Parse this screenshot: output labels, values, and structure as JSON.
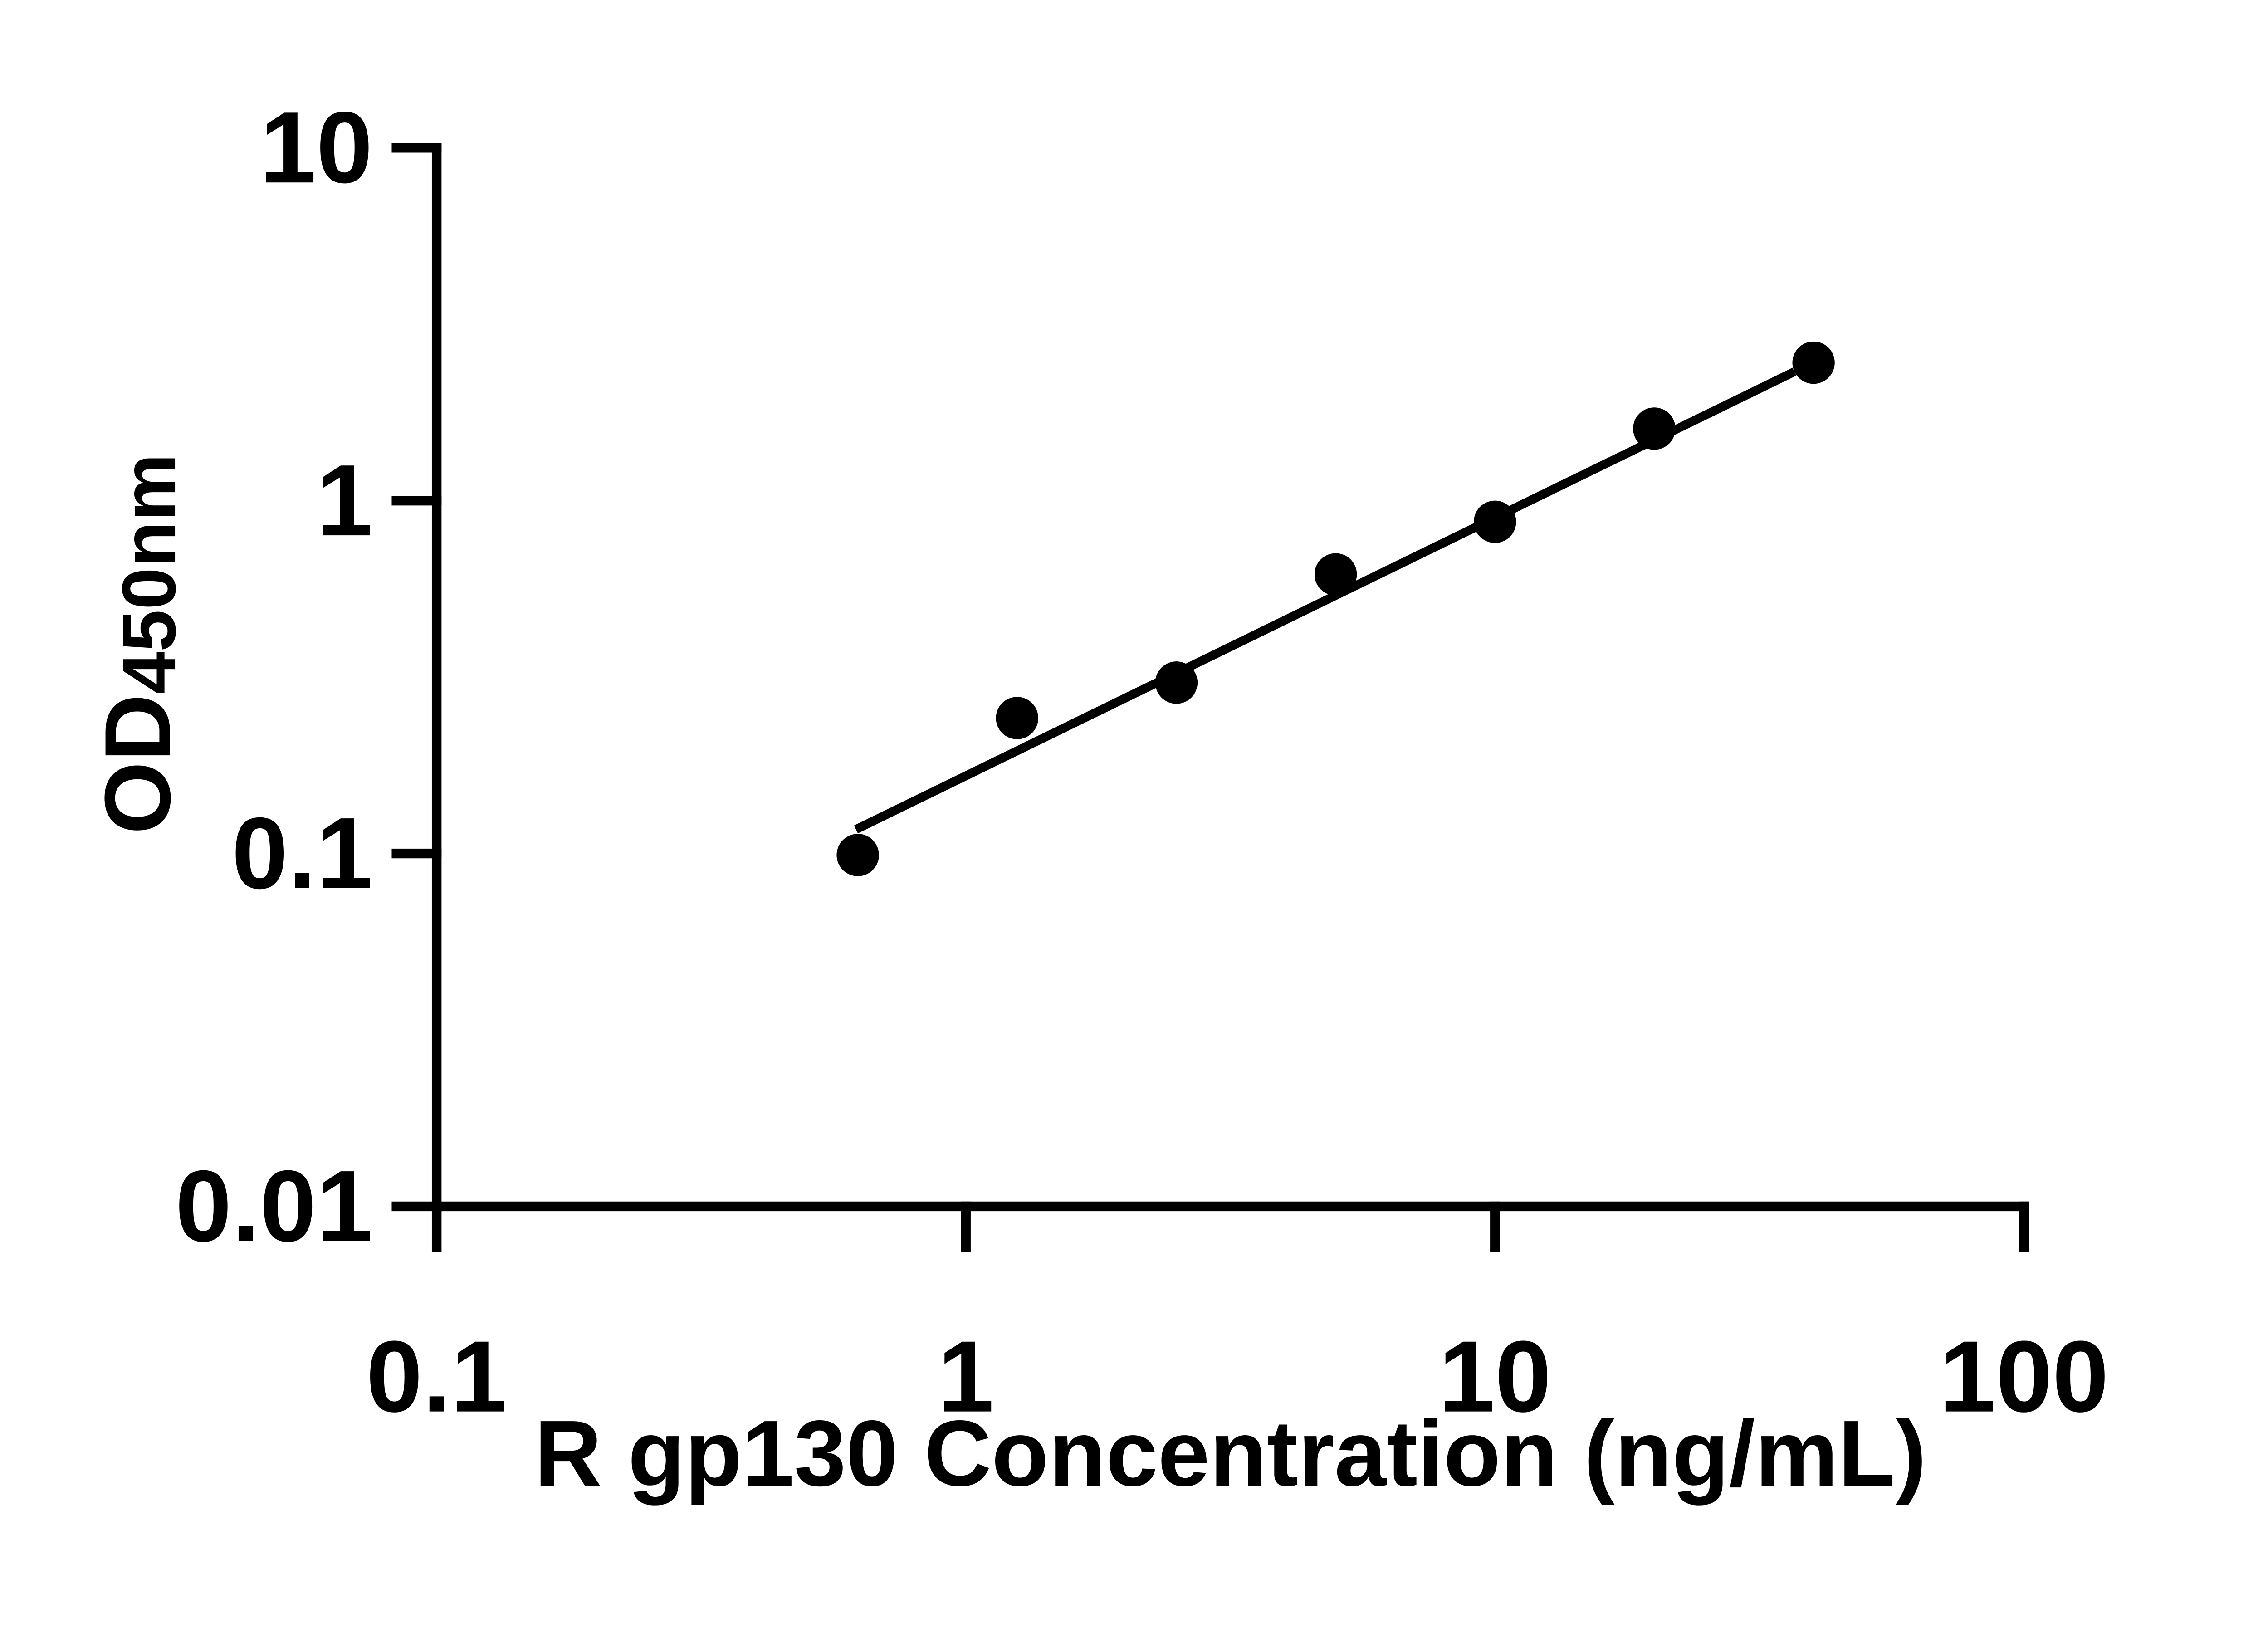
{
  "chart_data": {
    "type": "scatter",
    "title": "",
    "xlabel": "R gp130 Concentration (ng/mL)",
    "ylabel_main": "OD",
    "ylabel_sub": "450nm",
    "x_scale": "log",
    "y_scale": "log",
    "xlim": [
      0.1,
      100
    ],
    "ylim": [
      0.01,
      10
    ],
    "x_ticks": [
      0.1,
      1,
      10,
      100
    ],
    "x_tick_labels": [
      "0.1",
      "1",
      "10",
      "100"
    ],
    "y_ticks": [
      10,
      1,
      0.1,
      0.01
    ],
    "y_tick_labels": [
      "10",
      "1",
      "0.1",
      "0.01"
    ],
    "grid": false,
    "legend": "none",
    "series": [
      {
        "marker": "filled-circle",
        "color": "#000000",
        "points": [
          {
            "x": 0.625,
            "y": 0.099
          },
          {
            "x": 1.25,
            "y": 0.242
          },
          {
            "x": 2.5,
            "y": 0.305
          },
          {
            "x": 5,
            "y": 0.618
          },
          {
            "x": 10,
            "y": 0.871
          },
          {
            "x": 20,
            "y": 1.6
          },
          {
            "x": 40,
            "y": 2.46
          }
        ]
      }
    ],
    "trend_line": {
      "x1": 0.62,
      "y1": 0.117,
      "x2": 36.8,
      "y2": 2.32,
      "color": "#000000"
    }
  },
  "colors": {
    "background": "#ffffff",
    "foreground": "#000000"
  }
}
